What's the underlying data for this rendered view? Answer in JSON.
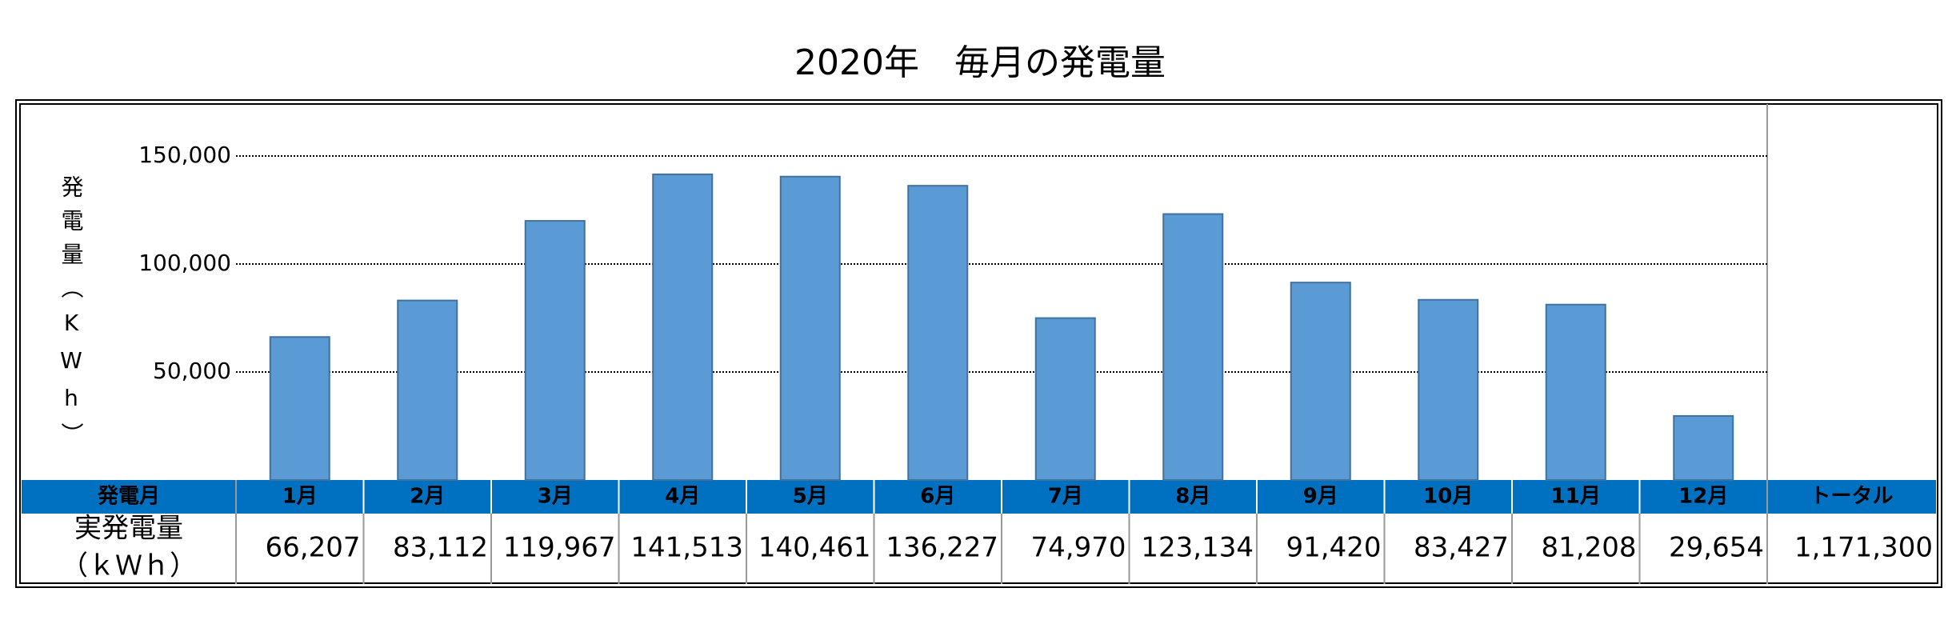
{
  "chart_data": {
    "type": "bar",
    "title": "2020年　毎月の発電量",
    "y_label": "発電量（KWh）",
    "categories": [
      "1月",
      "2月",
      "3月",
      "4月",
      "5月",
      "6月",
      "7月",
      "8月",
      "9月",
      "10月",
      "11月",
      "12月"
    ],
    "values": [
      66207,
      83112,
      119967,
      141513,
      140461,
      136227,
      74970,
      123134,
      91420,
      83427,
      81208,
      29654
    ],
    "value_labels": [
      "66,207",
      "83,112",
      "119,967",
      "141,513",
      "140,461",
      "136,227",
      "74,970",
      "123,134",
      "91,420",
      "83,427",
      "81,208",
      "29,654"
    ],
    "color": "#5b9bd5",
    "ylim": [
      0,
      150000
    ],
    "yticks": [
      {
        "value": 50000,
        "label": "50,000"
      },
      {
        "value": 100000,
        "label": "100,000"
      },
      {
        "value": 150000,
        "label": "150,000"
      }
    ],
    "grid": true
  },
  "table": {
    "corner": "発電月",
    "row_header": [
      "実発電量",
      "（ｋＷｈ）"
    ],
    "total_header": "トータル",
    "total": "1,171,300"
  }
}
